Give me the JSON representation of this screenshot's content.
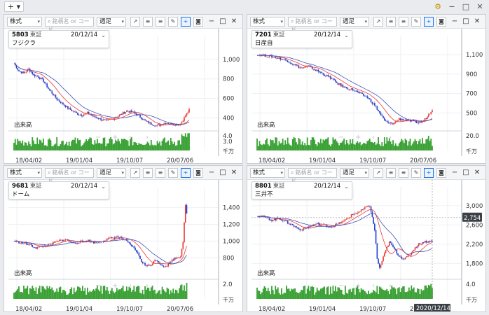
{
  "topbar": {
    "add_label": "+ ▾"
  },
  "panels": [
    {
      "type_select": "株式",
      "search_placeholder": "銘柄名 or コード",
      "period_select": "週足",
      "code": "5803",
      "exchange": "東証",
      "date": "20/12/14",
      "name": "フジクラ",
      "volume_label": "出来高",
      "volume_unit": "千万",
      "yticks": [
        "1,000",
        "800",
        "600",
        "400"
      ],
      "vol_ticks": [
        "4.0",
        "3.0"
      ],
      "xticks": [
        "18/04/02",
        "19/01/04",
        "19/10/07",
        "20/07/06"
      ],
      "price": {
        "min": 280,
        "max": 1100
      }
    },
    {
      "type_select": "株式",
      "search_placeholder": "銘柄名 or コード",
      "period_select": "週足",
      "code": "7201",
      "exchange": "東証",
      "date": "20/12/14",
      "name": "日産自",
      "volume_label": "出来高",
      "volume_unit": "千万",
      "yticks": [
        "1,100",
        "900",
        "700",
        "500"
      ],
      "vol_ticks": [
        "20.0"
      ],
      "xticks": [
        "18/04/02",
        "19/01/04",
        "19/10/07",
        "20/07/06"
      ],
      "price": {
        "min": 330,
        "max": 1150
      }
    },
    {
      "type_select": "株式",
      "search_placeholder": "銘柄名 or コード",
      "period_select": "週足",
      "code": "9681",
      "exchange": "東証",
      "date": "20/12/14",
      "name": "ドーム",
      "volume_label": "出来高",
      "volume_unit": "千万",
      "yticks": [
        "1,400",
        "1,200",
        "1,000",
        "800"
      ],
      "vol_ticks": [
        "2.0"
      ],
      "xticks": [
        "18/04/02",
        "19/01/04",
        "19/10/07",
        "20/07/06"
      ],
      "price": {
        "min": 560,
        "max": 1480
      }
    },
    {
      "type_select": "株式",
      "search_placeholder": "銘柄名 or コード",
      "period_select": "週足",
      "code": "8801",
      "exchange": "東証",
      "date": "20/12/14",
      "name": "三井不",
      "volume_label": "出来高",
      "volume_unit": "千万",
      "yticks": [
        "3,000",
        "2,600",
        "2,200",
        "1,800"
      ],
      "vol_ticks": [
        "4.0"
      ],
      "xticks": [
        "18/04/02",
        "19/01/04",
        "19/10/07",
        "20/07/06"
      ],
      "price_tag": "2,754",
      "date_tag": "2020/12/14",
      "price": {
        "min": 1500,
        "max": 3100
      }
    }
  ],
  "colors": {
    "up": "#e53935",
    "down": "#1e3fd1",
    "ma_short": "#e53935",
    "ma_long": "#3f51b5",
    "volume": "#3aa135",
    "accent": "#1a73e8"
  },
  "chart_data": [
    {
      "type": "candlestick",
      "title": "5803 フジクラ",
      "x_ticks": [
        "18/04/02",
        "19/01/04",
        "19/10/07",
        "20/07/06"
      ],
      "y_ticks": [
        1000,
        800,
        600,
        400
      ],
      "close_path": [
        [
          0,
          960
        ],
        [
          4,
          880
        ],
        [
          8,
          860
        ],
        [
          12,
          900
        ],
        [
          16,
          840
        ],
        [
          20,
          820
        ],
        [
          24,
          780
        ],
        [
          28,
          700
        ],
        [
          32,
          640
        ],
        [
          36,
          580
        ],
        [
          40,
          540
        ],
        [
          44,
          500
        ],
        [
          48,
          470
        ],
        [
          52,
          440
        ],
        [
          56,
          430
        ],
        [
          60,
          450
        ],
        [
          64,
          420
        ],
        [
          68,
          400
        ],
        [
          72,
          380
        ],
        [
          76,
          370
        ],
        [
          80,
          390
        ],
        [
          84,
          410
        ],
        [
          88,
          440
        ],
        [
          92,
          470
        ],
        [
          96,
          460
        ],
        [
          100,
          440
        ],
        [
          104,
          400
        ],
        [
          108,
          360
        ],
        [
          112,
          340
        ],
        [
          116,
          320
        ],
        [
          120,
          330
        ],
        [
          124,
          350
        ],
        [
          128,
          340
        ],
        [
          132,
          330
        ],
        [
          136,
          340
        ],
        [
          140,
          420
        ],
        [
          143,
          480
        ]
      ]
    },
    {
      "type": "candlestick",
      "title": "7201 日産自",
      "x_ticks": [
        "18/04/02",
        "19/01/04",
        "19/10/07",
        "20/07/06"
      ],
      "y_ticks": [
        1100,
        900,
        700,
        500
      ],
      "close_path": [
        [
          0,
          1100
        ],
        [
          6,
          1090
        ],
        [
          12,
          1080
        ],
        [
          18,
          1060
        ],
        [
          24,
          1040
        ],
        [
          30,
          1000
        ],
        [
          36,
          960
        ],
        [
          42,
          980
        ],
        [
          48,
          940
        ],
        [
          54,
          900
        ],
        [
          60,
          860
        ],
        [
          66,
          800
        ],
        [
          72,
          760
        ],
        [
          78,
          740
        ],
        [
          84,
          700
        ],
        [
          90,
          660
        ],
        [
          96,
          580
        ],
        [
          100,
          500
        ],
        [
          104,
          420
        ],
        [
          108,
          390
        ],
        [
          112,
          400
        ],
        [
          116,
          440
        ],
        [
          120,
          430
        ],
        [
          124,
          420
        ],
        [
          128,
          410
        ],
        [
          132,
          400
        ],
        [
          136,
          420
        ],
        [
          140,
          480
        ],
        [
          143,
          540
        ]
      ]
    },
    {
      "type": "candlestick",
      "title": "9681 ドーム",
      "x_ticks": [
        "18/04/02",
        "19/01/04",
        "19/10/07",
        "20/07/06"
      ],
      "y_ticks": [
        1400,
        1200,
        1000,
        800
      ],
      "close_path": [
        [
          0,
          1000
        ],
        [
          6,
          980
        ],
        [
          12,
          960
        ],
        [
          18,
          920
        ],
        [
          24,
          940
        ],
        [
          30,
          960
        ],
        [
          36,
          1000
        ],
        [
          42,
          1020
        ],
        [
          48,
          980
        ],
        [
          54,
          990
        ],
        [
          60,
          1010
        ],
        [
          66,
          980
        ],
        [
          72,
          1000
        ],
        [
          78,
          1030
        ],
        [
          84,
          1050
        ],
        [
          90,
          1020
        ],
        [
          96,
          940
        ],
        [
          100,
          880
        ],
        [
          104,
          760
        ],
        [
          108,
          700
        ],
        [
          112,
          720
        ],
        [
          116,
          780
        ],
        [
          120,
          720
        ],
        [
          124,
          690
        ],
        [
          128,
          760
        ],
        [
          132,
          800
        ],
        [
          136,
          820
        ],
        [
          138,
          1000
        ],
        [
          140,
          1420
        ],
        [
          141,
          1330
        ]
      ]
    },
    {
      "type": "candlestick",
      "title": "8801 三井不",
      "x_ticks": [
        "18/04/02",
        "19/01/04",
        "19/10/07",
        "20/07/06"
      ],
      "y_ticks": [
        3000,
        2600,
        2200,
        1800
      ],
      "close_path": [
        [
          0,
          2800
        ],
        [
          6,
          2760
        ],
        [
          12,
          2700
        ],
        [
          18,
          2740
        ],
        [
          24,
          2660
        ],
        [
          30,
          2580
        ],
        [
          36,
          2500
        ],
        [
          42,
          2560
        ],
        [
          48,
          2620
        ],
        [
          54,
          2600
        ],
        [
          60,
          2560
        ],
        [
          66,
          2620
        ],
        [
          72,
          2700
        ],
        [
          78,
          2820
        ],
        [
          84,
          2880
        ],
        [
          88,
          2950
        ],
        [
          92,
          3000
        ],
        [
          96,
          2500
        ],
        [
          98,
          1900
        ],
        [
          100,
          1700
        ],
        [
          104,
          2000
        ],
        [
          108,
          2250
        ],
        [
          112,
          2100
        ],
        [
          116,
          1950
        ],
        [
          120,
          1900
        ],
        [
          124,
          1950
        ],
        [
          128,
          2100
        ],
        [
          132,
          2200
        ],
        [
          136,
          2250
        ],
        [
          140,
          2260
        ],
        [
          143,
          2260
        ]
      ]
    }
  ]
}
